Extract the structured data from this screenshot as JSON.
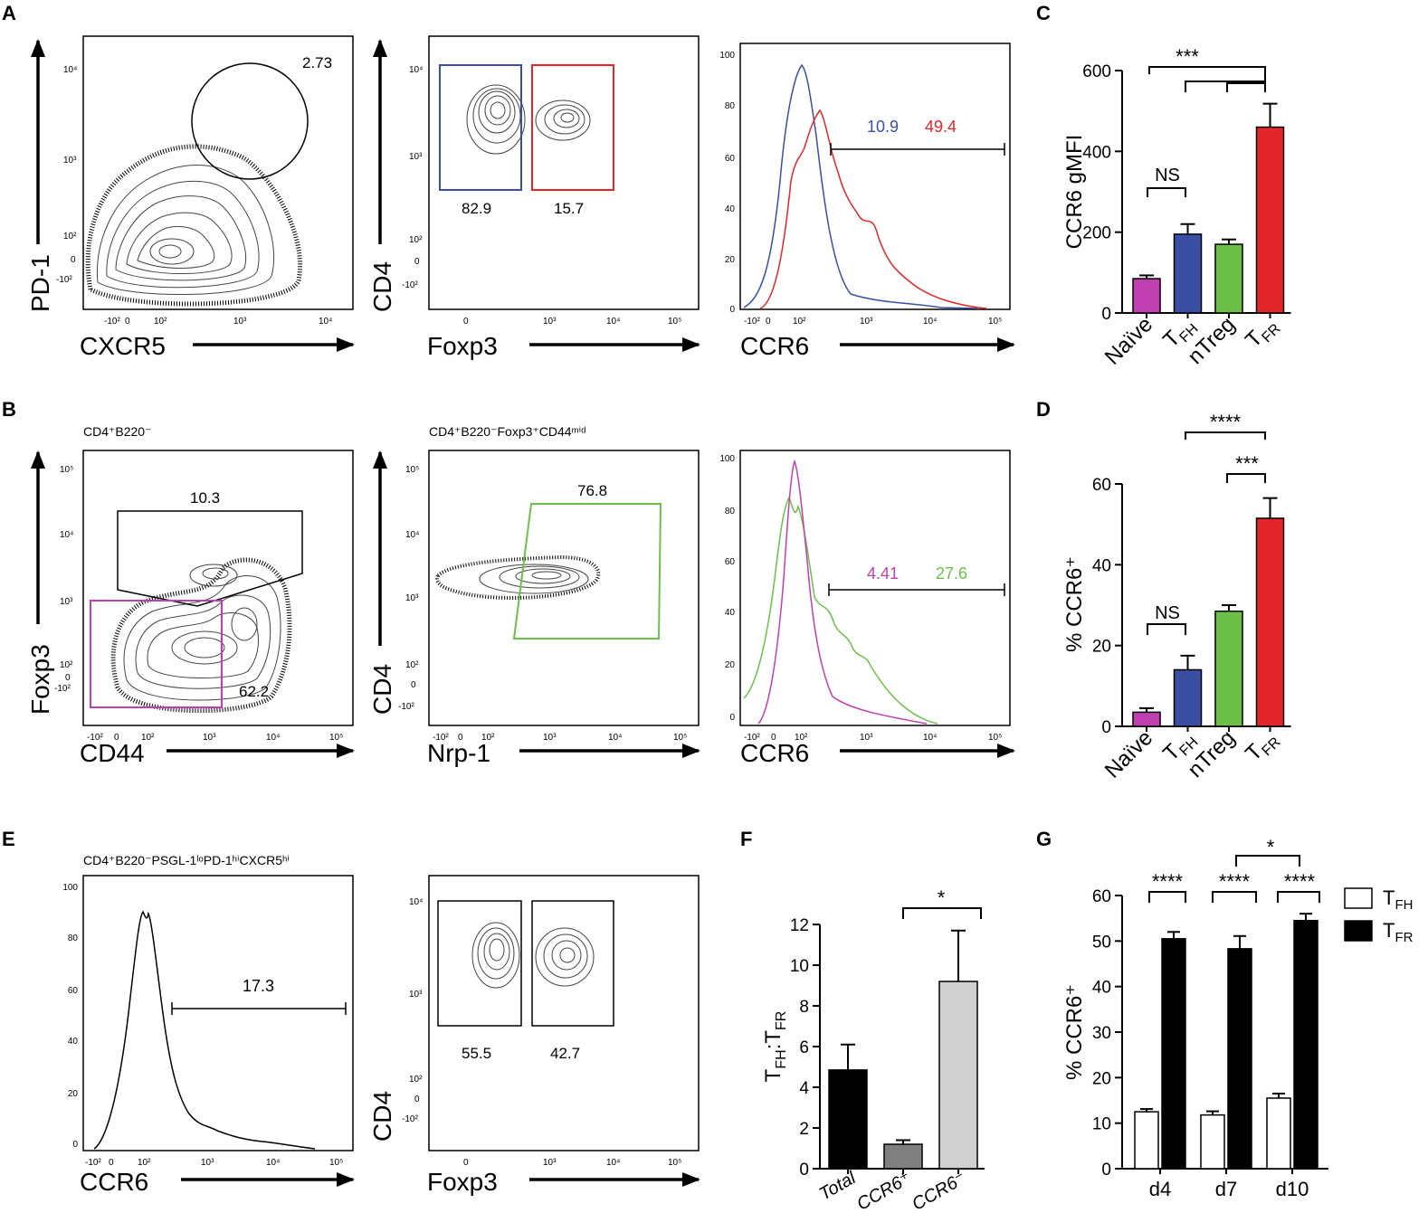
{
  "figure": {
    "panel_letters": [
      "A",
      "B",
      "C",
      "D",
      "E",
      "F",
      "G"
    ],
    "colors": {
      "blue": "#3a4fa3",
      "red": "#e3262a",
      "magenta": "#c03fb0",
      "green": "#6cc04a",
      "grey": "#808080",
      "lightgrey": "#d0d0d0",
      "black": "#000000"
    }
  },
  "panelA": {
    "flow1": {
      "ylabel": "PD-1",
      "xlabel": "CXCR5",
      "gate_value": "2.73",
      "xticks": [
        "-10²",
        "0",
        "10²",
        "10³",
        "10⁴"
      ],
      "yticks": [
        "10⁴",
        "10³",
        "10²",
        "0",
        "-10²"
      ]
    },
    "flow2": {
      "ylabel": "CD4",
      "xlabel": "Foxp3",
      "gate_left": "82.9",
      "gate_right": "15.7",
      "xticks": [
        "0",
        "10³",
        "10⁴",
        "10⁵"
      ],
      "yticks": [
        "10⁴",
        "10³",
        "10²",
        "0",
        "-10²"
      ]
    },
    "hist": {
      "xlabel": "CCR6",
      "val_blue": "10.9",
      "val_red": "49.4",
      "xticks": [
        "-10²",
        "0",
        "10²",
        "10³",
        "10⁴",
        "10⁵"
      ],
      "yticks": [
        "100",
        "80",
        "60",
        "40",
        "20",
        "0"
      ]
    }
  },
  "panelB": {
    "flow1": {
      "title": "CD4⁺B220⁻",
      "ylabel": "Foxp3",
      "xlabel": "CD44",
      "gate_top": "10.3",
      "gate_bottom": "62.2",
      "xticks": [
        "-10²",
        "0",
        "10²",
        "10³",
        "10⁴",
        "10⁵"
      ],
      "yticks": [
        "10⁵",
        "10⁴",
        "10³",
        "10²",
        "0",
        "-10²"
      ]
    },
    "flow2": {
      "title": "CD4⁺B220⁻Foxp3⁺CD44ᵐⁱᵈ",
      "ylabel": "CD4",
      "xlabel": "Nrp-1",
      "gate_value": "76.8",
      "xticks": [
        "-10²",
        "0",
        "10²",
        "10³",
        "10⁴",
        "10⁵"
      ],
      "yticks": [
        "10⁵",
        "10⁴",
        "10³",
        "10²",
        "0",
        "-10²"
      ]
    },
    "hist": {
      "xlabel": "CCR6",
      "val_magenta": "4.41",
      "val_green": "27.6",
      "xticks": [
        "-10²",
        "0",
        "10²",
        "10³",
        "10⁴",
        "10⁵"
      ],
      "yticks": [
        "100",
        "80",
        "60",
        "40",
        "20",
        "0"
      ]
    }
  },
  "panelE": {
    "hist": {
      "title": "CD4⁺B220⁻PSGL-1ˡᵒPD-1ʰⁱCXCR5ʰⁱ",
      "xlabel": "CCR6",
      "gate_value": "17.3",
      "xticks": [
        "-10²",
        "0",
        "10²",
        "10³",
        "10⁴",
        "10⁵"
      ],
      "yticks": [
        "100",
        "80",
        "60",
        "40",
        "20",
        "0"
      ]
    },
    "flow": {
      "ylabel": "CD4",
      "xlabel": "Foxp3",
      "gate_left": "55.5",
      "gate_right": "42.7",
      "xticks": [
        "0",
        "10³",
        "10⁴",
        "10⁵"
      ],
      "yticks": [
        "10⁴",
        "10³",
        "10²",
        "0",
        "-10²"
      ]
    }
  },
  "sig": {
    "c1": "***",
    "c_ns": "NS",
    "d1": "****",
    "d2": "***",
    "d_ns": "NS",
    "f1": "*",
    "g_d4": "****",
    "g_d7": "****",
    "g_d10": "****",
    "g_top": "*"
  },
  "chart_data": [
    {
      "panel": "C",
      "type": "bar",
      "ylabel": "CCR6 gMFI",
      "ylim": [
        0,
        600
      ],
      "yticks": [
        0,
        200,
        400,
        600
      ],
      "categories": [
        "Naïve",
        "T_FH",
        "nTreg",
        "T_FR"
      ],
      "category_labels": [
        "Naïve",
        "T",
        "nTreg",
        "T"
      ],
      "category_subs": [
        "",
        "FH",
        "",
        "FR"
      ],
      "values": [
        85,
        195,
        170,
        460
      ],
      "errors": [
        8,
        25,
        12,
        58
      ],
      "colors": [
        "#c03fb0",
        "#3a4fa3",
        "#6cc04a",
        "#e3262a"
      ]
    },
    {
      "panel": "D",
      "type": "bar",
      "ylabel": "% CCR6⁺",
      "ylim": [
        0,
        60
      ],
      "yticks": [
        0,
        20,
        40,
        60
      ],
      "categories": [
        "Naïve",
        "T_FH",
        "nTreg",
        "T_FR"
      ],
      "category_labels": [
        "Naïve",
        "T",
        "nTreg",
        "T"
      ],
      "category_subs": [
        "",
        "FH",
        "",
        "FR"
      ],
      "values": [
        3.5,
        14,
        28.5,
        51.5
      ],
      "errors": [
        1,
        3.5,
        1.5,
        5
      ],
      "colors": [
        "#c03fb0",
        "#3a4fa3",
        "#6cc04a",
        "#e3262a"
      ]
    },
    {
      "panel": "F",
      "type": "bar",
      "ylabel": "T_FH:T_FR",
      "ylabel_main": "T",
      "ylabel_sub1": "FH",
      "ylabel_mid": ":T",
      "ylabel_sub2": "FR",
      "ylim": [
        0,
        12
      ],
      "yticks": [
        0,
        2,
        4,
        6,
        8,
        10,
        12
      ],
      "categories": [
        "Total",
        "CCR6⁺",
        "CCR6⁻"
      ],
      "values": [
        4.85,
        1.2,
        9.2
      ],
      "errors": [
        1.25,
        0.2,
        2.5
      ],
      "colors": [
        "#000000",
        "#808080",
        "#d0d0d0"
      ]
    },
    {
      "panel": "G",
      "type": "bar",
      "ylabel": "% CCR6⁺",
      "ylim": [
        0,
        60
      ],
      "yticks": [
        0,
        10,
        20,
        30,
        40,
        50,
        60
      ],
      "categories": [
        "d4",
        "d7",
        "d10"
      ],
      "series": [
        {
          "name": "T_FH",
          "label": "T",
          "sub": "FH",
          "values": [
            12.5,
            11.8,
            15.5
          ],
          "errors": [
            0.6,
            0.8,
            1.0
          ],
          "color": "#ffffff"
        },
        {
          "name": "T_FR",
          "label": "T",
          "sub": "FR",
          "values": [
            50.5,
            48.3,
            54.5
          ],
          "errors": [
            1.5,
            2.8,
            1.5
          ],
          "color": "#000000"
        }
      ]
    }
  ]
}
